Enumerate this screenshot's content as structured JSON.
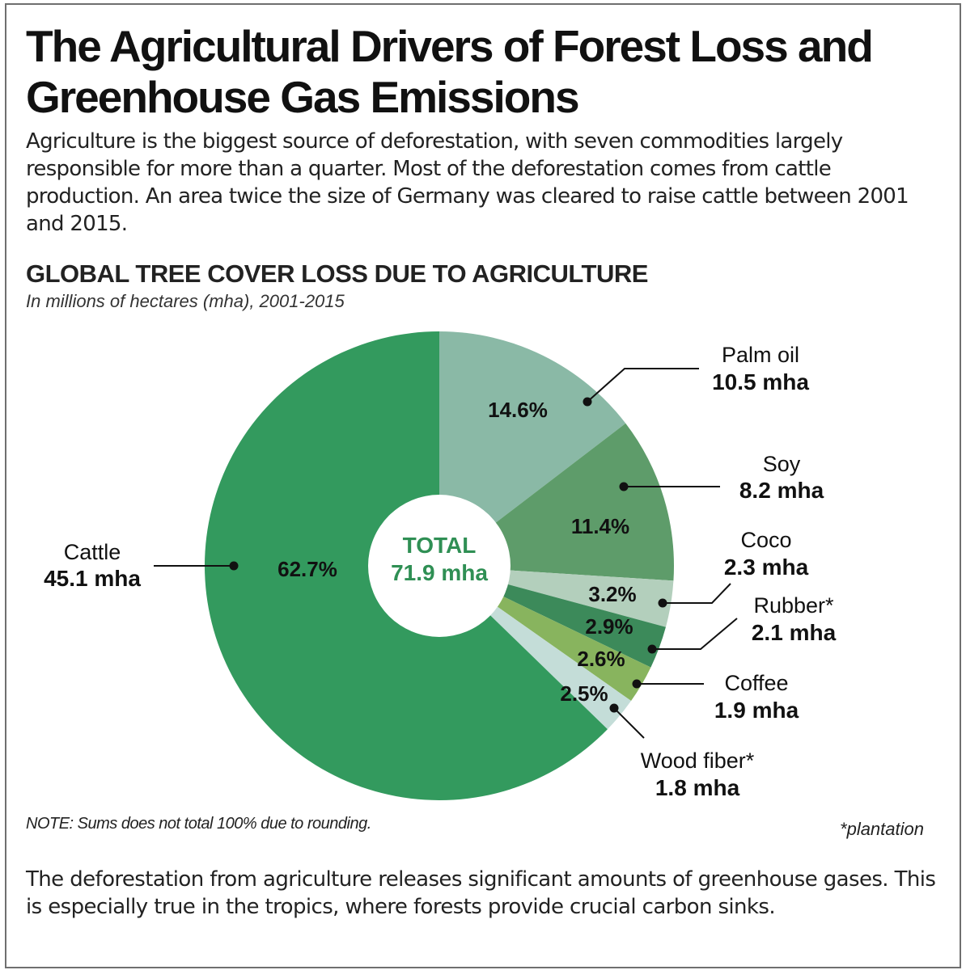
{
  "title": "The Agricultural Drivers of Forest Loss and Greenhouse Gas Emissions",
  "intro": "Agriculture is the biggest source of deforestation, with seven commodities largely responsible for more than a quarter. Most of the deforestation comes from cattle production. An area twice the size of Germany was cleared to raise cattle between 2001 and 2015.",
  "chart_heading": "GLOBAL TREE COVER LOSS DUE TO AGRICULTURE",
  "chart_subheading": "In millions of hectares (mha), 2001-2015",
  "note": "NOTE: Sums does not total 100% due to rounding.",
  "footnote": "*plantation",
  "outro": "The deforestation from agriculture releases significant amounts of greenhouse gases. This is especially true in the tropics, where forests provide crucial carbon sinks.",
  "chart_data": {
    "type": "pie",
    "style": "donut",
    "unit": "mha",
    "center_label": "TOTAL",
    "center_value": "71.9 mha",
    "total": 71.9,
    "slices": [
      {
        "name": "Palm oil",
        "value": 10.5,
        "value_label": "10.5 mha",
        "percent": 14.6,
        "percent_label": "14.6%",
        "color": "#8ab9a6"
      },
      {
        "name": "Soy",
        "value": 8.2,
        "value_label": "8.2 mha",
        "percent": 11.4,
        "percent_label": "11.4%",
        "color": "#5e9c6a"
      },
      {
        "name": "Coco",
        "value": 2.3,
        "value_label": "2.3 mha",
        "percent": 3.2,
        "percent_label": "3.2%",
        "color": "#b3cfbc"
      },
      {
        "name": "Rubber*",
        "value": 2.1,
        "value_label": "2.1 mha",
        "percent": 2.9,
        "percent_label": "2.9%",
        "color": "#3c8a5a"
      },
      {
        "name": "Coffee",
        "value": 1.9,
        "value_label": "1.9 mha",
        "percent": 2.6,
        "percent_label": "2.6%",
        "color": "#88b45e"
      },
      {
        "name": "Wood fiber*",
        "value": 1.8,
        "value_label": "1.8 mha",
        "percent": 2.5,
        "percent_label": "2.5%",
        "color": "#c4ddd8"
      },
      {
        "name": "Cattle",
        "value": 45.1,
        "value_label": "45.1 mha",
        "percent": 62.7,
        "percent_label": "62.7%",
        "color": "#339a5e"
      }
    ],
    "center_color": "#2f8f54"
  }
}
